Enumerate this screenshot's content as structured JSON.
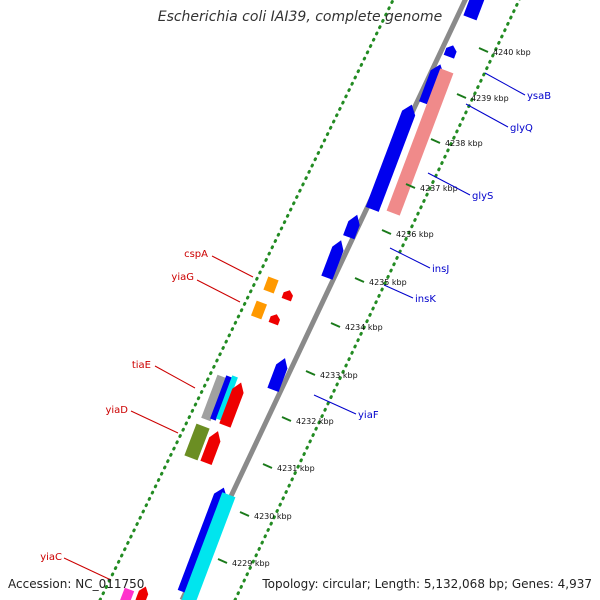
{
  "title": "Escherichia coli IAI39, complete genome",
  "footer": {
    "accession": "Accession: NC_011750",
    "summary": "Topology: circular; Length: 5,132,068 bp; Genes: 4,937"
  },
  "colors": {
    "backbone": "#8a8a8a",
    "gc_track": "#228b22",
    "label_right": "#0000cc",
    "label_left": "#cc0000",
    "tick_text": "#111111"
  },
  "ticks": [
    {
      "label": "4240 kbp"
    },
    {
      "label": "4239 kbp"
    },
    {
      "label": "4238 kbp"
    },
    {
      "label": "4237 kbp"
    },
    {
      "label": "4236 kbp"
    },
    {
      "label": "4235 kbp"
    },
    {
      "label": "4234 kbp"
    },
    {
      "label": "4233 kbp"
    },
    {
      "label": "4232 kbp"
    },
    {
      "label": "4231 kbp"
    },
    {
      "label": "4230 kbp"
    },
    {
      "label": "4229 kbp"
    }
  ],
  "genes_right": [
    {
      "label": "ysaB"
    },
    {
      "label": "glyQ"
    },
    {
      "label": "glyS"
    },
    {
      "label": "insJ"
    },
    {
      "label": "insK"
    },
    {
      "label": "yiaF"
    }
  ],
  "genes_left": [
    {
      "label": "cspA"
    },
    {
      "label": "yiaG"
    },
    {
      "label": "tiaE"
    },
    {
      "label": "yiaD"
    },
    {
      "label": "yiaC"
    }
  ]
}
